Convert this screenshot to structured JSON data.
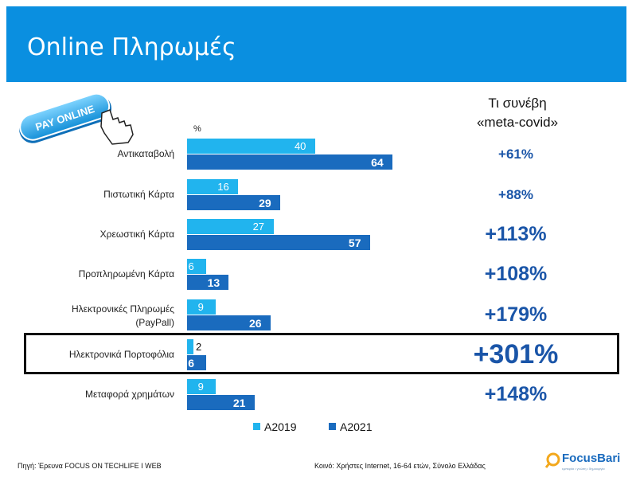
{
  "header": {
    "title": "Online Πληρωμές"
  },
  "badge": {
    "text": "PAY ONLINE"
  },
  "column_header": {
    "line1": "Τι συνέβη",
    "line2": "«meta-covid»"
  },
  "chart_data": {
    "type": "bar",
    "orientation": "horizontal",
    "y_unit": "%",
    "categories": [
      "Αντικαταβολή",
      "Πιστωτική Κάρτα",
      "Χρεωστική Κάρτα",
      "Προπληρωμένη Κάρτα",
      "Ηλεκτρονικές Πληρωμές (PayPall)",
      "Ηλεκτρονικά Πορτοφόλια",
      "Μεταφορά χρημάτων"
    ],
    "category_lines": [
      [
        "Αντικαταβολή"
      ],
      [
        "Πιστωτική Κάρτα"
      ],
      [
        "Χρεωστική Κάρτα"
      ],
      [
        "Προπληρωμένη Κάρτα"
      ],
      [
        "Ηλεκτρονικές Πληρωμές",
        "(PayPall)"
      ],
      [
        "Ηλεκτρονικά Πορτοφόλια"
      ],
      [
        "Μεταφορά χρημάτων"
      ]
    ],
    "series": [
      {
        "name": "A2019",
        "values": [
          40,
          16,
          27,
          6,
          9,
          2,
          9
        ],
        "color": "#21b4ee"
      },
      {
        "name": "A2021",
        "values": [
          64,
          29,
          57,
          13,
          26,
          6,
          21
        ],
        "color": "#1a6bbe"
      }
    ],
    "changes": [
      "+61%",
      "+88%",
      "+113%",
      "+108%",
      "+179%",
      "+301%",
      "+148%"
    ],
    "highlighted_category": "Ηλεκτρονικά Πορτοφόλια",
    "legend_placement": "bottom",
    "grid": false
  },
  "footer": {
    "source": "Πηγή: Έρευνα FOCUS ON TECHLIFE I WEB",
    "base": "Κοινό: Χρήστες Internet, 16-64 ετών, Σύνολο Ελλάδας",
    "brand": "FocusBari",
    "brand_tagline": "εμπειρία • γνώση • δημιουργία"
  }
}
